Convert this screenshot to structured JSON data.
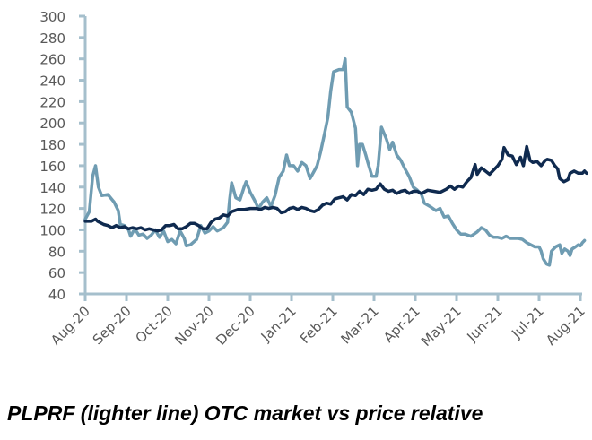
{
  "caption": "PLPRF (lighter line) OTC market vs price relative",
  "chart_data": {
    "type": "line",
    "title": "",
    "xlabel": "",
    "ylabel": "",
    "ylim": [
      40,
      300
    ],
    "yticks": [
      40,
      60,
      80,
      100,
      120,
      140,
      160,
      180,
      200,
      220,
      240,
      260,
      280,
      300
    ],
    "x_categories": [
      "Aug-20",
      "Sep-20",
      "Oct-20",
      "Nov-20",
      "Dec-20",
      "Jan-21",
      "Feb-21",
      "Mar-21",
      "Apr-21",
      "May-21",
      "Jun-21",
      "Jul-21",
      "Aug-21"
    ],
    "x_unit": "months since Aug-20",
    "grid": false,
    "legend": "none",
    "series": [
      {
        "name": "PLPRF OTC market",
        "color": "#6f9cb2",
        "points": [
          [
            0,
            110
          ],
          [
            0.1,
            117
          ],
          [
            0.18,
            150
          ],
          [
            0.25,
            160
          ],
          [
            0.32,
            140
          ],
          [
            0.4,
            132
          ],
          [
            0.55,
            133
          ],
          [
            0.7,
            126
          ],
          [
            0.8,
            118
          ],
          [
            0.85,
            105
          ],
          [
            0.95,
            104
          ],
          [
            1.05,
            100
          ],
          [
            1.1,
            94
          ],
          [
            1.2,
            101
          ],
          [
            1.3,
            95
          ],
          [
            1.4,
            96
          ],
          [
            1.5,
            92
          ],
          [
            1.6,
            95
          ],
          [
            1.7,
            100
          ],
          [
            1.8,
            93
          ],
          [
            1.9,
            99
          ],
          [
            2.0,
            89
          ],
          [
            2.1,
            91
          ],
          [
            2.2,
            87
          ],
          [
            2.3,
            99
          ],
          [
            2.4,
            92
          ],
          [
            2.45,
            85
          ],
          [
            2.55,
            86
          ],
          [
            2.7,
            91
          ],
          [
            2.8,
            104
          ],
          [
            2.9,
            97
          ],
          [
            3.0,
            99
          ],
          [
            3.1,
            103
          ],
          [
            3.2,
            99
          ],
          [
            3.35,
            102
          ],
          [
            3.45,
            107
          ],
          [
            3.5,
            128
          ],
          [
            3.55,
            144
          ],
          [
            3.65,
            130
          ],
          [
            3.75,
            128
          ],
          [
            3.85,
            140
          ],
          [
            3.9,
            145
          ],
          [
            4.0,
            135
          ],
          [
            4.1,
            128
          ],
          [
            4.2,
            120
          ],
          [
            4.3,
            126
          ],
          [
            4.4,
            130
          ],
          [
            4.5,
            122
          ],
          [
            4.6,
            132
          ],
          [
            4.7,
            149
          ],
          [
            4.8,
            155
          ],
          [
            4.88,
            170
          ],
          [
            4.95,
            160
          ],
          [
            5.05,
            160
          ],
          [
            5.15,
            155
          ],
          [
            5.25,
            163
          ],
          [
            5.35,
            160
          ],
          [
            5.45,
            148
          ],
          [
            5.55,
            155
          ],
          [
            5.62,
            160
          ],
          [
            5.7,
            172
          ],
          [
            5.8,
            190
          ],
          [
            5.88,
            205
          ],
          [
            5.95,
            230
          ],
          [
            6.02,
            248
          ],
          [
            6.15,
            250
          ],
          [
            6.25,
            250
          ],
          [
            6.3,
            260
          ],
          [
            6.35,
            215
          ],
          [
            6.45,
            210
          ],
          [
            6.55,
            195
          ],
          [
            6.6,
            160
          ],
          [
            6.65,
            180
          ],
          [
            6.72,
            180
          ],
          [
            6.8,
            170
          ],
          [
            6.85,
            163
          ],
          [
            6.95,
            150
          ],
          [
            7.05,
            150
          ],
          [
            7.1,
            160
          ],
          [
            7.18,
            196
          ],
          [
            7.3,
            185
          ],
          [
            7.38,
            175
          ],
          [
            7.45,
            182
          ],
          [
            7.55,
            170
          ],
          [
            7.65,
            165
          ],
          [
            7.75,
            157
          ],
          [
            7.85,
            150
          ],
          [
            7.95,
            140
          ],
          [
            8.05,
            137
          ],
          [
            8.15,
            133
          ],
          [
            8.22,
            125
          ],
          [
            8.35,
            122
          ],
          [
            8.5,
            118
          ],
          [
            8.6,
            120
          ],
          [
            8.7,
            112
          ],
          [
            8.8,
            113
          ],
          [
            8.9,
            106
          ],
          [
            9.0,
            100
          ],
          [
            9.1,
            96
          ],
          [
            9.2,
            96
          ],
          [
            9.35,
            94
          ],
          [
            9.5,
            98
          ],
          [
            9.6,
            102
          ],
          [
            9.7,
            100
          ],
          [
            9.8,
            95
          ],
          [
            9.9,
            93
          ],
          [
            10.0,
            93
          ],
          [
            10.1,
            92
          ],
          [
            10.2,
            94
          ],
          [
            10.3,
            92
          ],
          [
            10.5,
            92
          ],
          [
            10.6,
            91
          ],
          [
            10.7,
            88
          ],
          [
            10.8,
            86
          ],
          [
            10.9,
            84
          ],
          [
            11.0,
            84
          ],
          [
            11.05,
            80
          ],
          [
            11.1,
            73
          ],
          [
            11.18,
            68
          ],
          [
            11.25,
            67
          ],
          [
            11.3,
            80
          ],
          [
            11.4,
            84
          ],
          [
            11.5,
            86
          ],
          [
            11.55,
            78
          ],
          [
            11.62,
            82
          ],
          [
            11.7,
            80
          ],
          [
            11.75,
            76
          ],
          [
            11.8,
            82
          ],
          [
            11.88,
            84
          ],
          [
            11.95,
            86
          ],
          [
            12.0,
            85
          ],
          [
            12.05,
            88
          ],
          [
            12.1,
            90
          ]
        ]
      },
      {
        "name": "Price relative",
        "color": "#0f2a4f",
        "points": [
          [
            0,
            108
          ],
          [
            0.15,
            108
          ],
          [
            0.25,
            110
          ],
          [
            0.3,
            108
          ],
          [
            0.45,
            105
          ],
          [
            0.55,
            104
          ],
          [
            0.65,
            102
          ],
          [
            0.75,
            104
          ],
          [
            0.85,
            102
          ],
          [
            0.95,
            103
          ],
          [
            1.05,
            101
          ],
          [
            1.15,
            102
          ],
          [
            1.25,
            101
          ],
          [
            1.35,
            102
          ],
          [
            1.45,
            100
          ],
          [
            1.55,
            101
          ],
          [
            1.65,
            100
          ],
          [
            1.75,
            99
          ],
          [
            1.85,
            100
          ],
          [
            1.95,
            104
          ],
          [
            2.05,
            104
          ],
          [
            2.15,
            105
          ],
          [
            2.25,
            101
          ],
          [
            2.35,
            101
          ],
          [
            2.45,
            103
          ],
          [
            2.55,
            106
          ],
          [
            2.65,
            106
          ],
          [
            2.75,
            104
          ],
          [
            2.85,
            101
          ],
          [
            2.95,
            101
          ],
          [
            3.05,
            107
          ],
          [
            3.15,
            110
          ],
          [
            3.25,
            111
          ],
          [
            3.35,
            114
          ],
          [
            3.45,
            113
          ],
          [
            3.55,
            117
          ],
          [
            3.7,
            119
          ],
          [
            3.85,
            119
          ],
          [
            4.0,
            120
          ],
          [
            4.15,
            120
          ],
          [
            4.25,
            119
          ],
          [
            4.35,
            121
          ],
          [
            4.45,
            120
          ],
          [
            4.55,
            121
          ],
          [
            4.65,
            120
          ],
          [
            4.75,
            116
          ],
          [
            4.85,
            117
          ],
          [
            4.95,
            120
          ],
          [
            5.05,
            121
          ],
          [
            5.15,
            119
          ],
          [
            5.25,
            121
          ],
          [
            5.35,
            120
          ],
          [
            5.45,
            118
          ],
          [
            5.55,
            117
          ],
          [
            5.65,
            119
          ],
          [
            5.75,
            123
          ],
          [
            5.85,
            125
          ],
          [
            5.95,
            124
          ],
          [
            6.05,
            129
          ],
          [
            6.15,
            130
          ],
          [
            6.25,
            131
          ],
          [
            6.35,
            128
          ],
          [
            6.45,
            133
          ],
          [
            6.55,
            132
          ],
          [
            6.65,
            136
          ],
          [
            6.75,
            133
          ],
          [
            6.85,
            138
          ],
          [
            6.95,
            137
          ],
          [
            7.05,
            138
          ],
          [
            7.15,
            143
          ],
          [
            7.25,
            138
          ],
          [
            7.35,
            136
          ],
          [
            7.45,
            137
          ],
          [
            7.55,
            134
          ],
          [
            7.65,
            136
          ],
          [
            7.75,
            137
          ],
          [
            7.85,
            134
          ],
          [
            7.95,
            136
          ],
          [
            8.05,
            136
          ],
          [
            8.15,
            134
          ],
          [
            8.3,
            137
          ],
          [
            8.45,
            136
          ],
          [
            8.6,
            135
          ],
          [
            8.75,
            138
          ],
          [
            8.85,
            141
          ],
          [
            8.95,
            138
          ],
          [
            9.05,
            141
          ],
          [
            9.15,
            140
          ],
          [
            9.25,
            145
          ],
          [
            9.35,
            149
          ],
          [
            9.45,
            161
          ],
          [
            9.5,
            152
          ],
          [
            9.6,
            158
          ],
          [
            9.7,
            155
          ],
          [
            9.8,
            152
          ],
          [
            9.9,
            156
          ],
          [
            10.0,
            160
          ],
          [
            10.1,
            166
          ],
          [
            10.15,
            177
          ],
          [
            10.25,
            170
          ],
          [
            10.35,
            169
          ],
          [
            10.45,
            161
          ],
          [
            10.55,
            168
          ],
          [
            10.62,
            160
          ],
          [
            10.7,
            178
          ],
          [
            10.78,
            165
          ],
          [
            10.85,
            163
          ],
          [
            10.95,
            164
          ],
          [
            11.05,
            160
          ],
          [
            11.15,
            165
          ],
          [
            11.2,
            166
          ],
          [
            11.3,
            165
          ],
          [
            11.38,
            160
          ],
          [
            11.45,
            157
          ],
          [
            11.5,
            148
          ],
          [
            11.6,
            145
          ],
          [
            11.7,
            147
          ],
          [
            11.75,
            153
          ],
          [
            11.85,
            155
          ],
          [
            11.95,
            153
          ],
          [
            12.05,
            153
          ],
          [
            12.1,
            155
          ],
          [
            12.15,
            153
          ]
        ]
      }
    ]
  }
}
